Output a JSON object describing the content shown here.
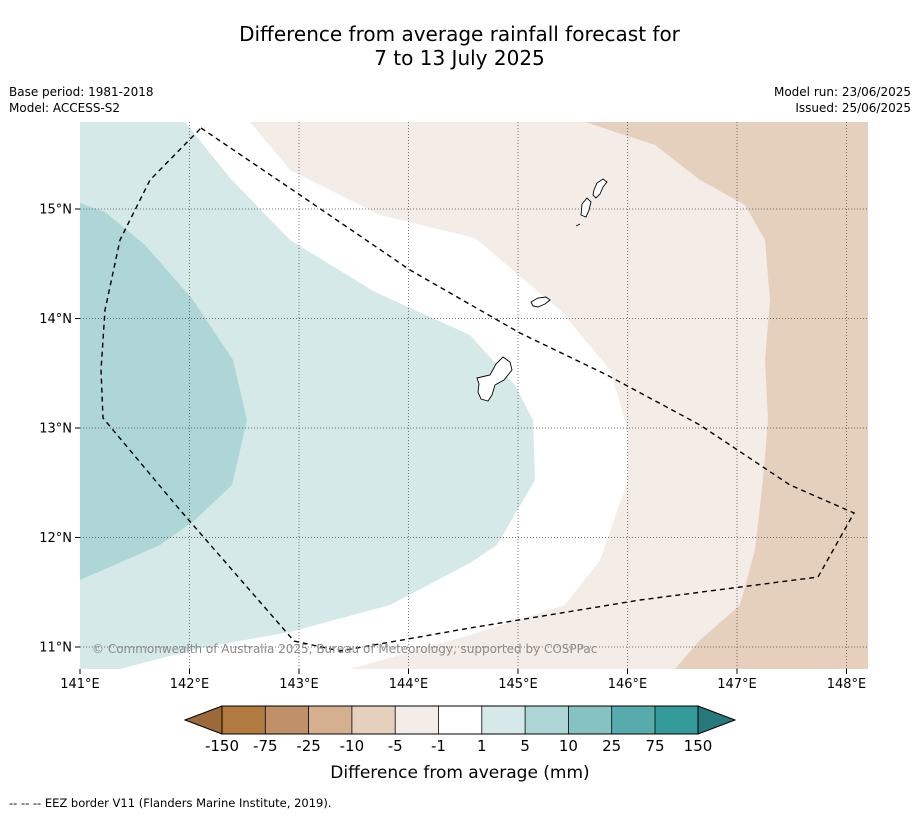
{
  "title_line1": "Difference from average rainfall forecast for",
  "title_line2": "7 to 13 July 2025",
  "meta_left": [
    "Base period: 1981-2018",
    "Model: ACCESS-S2"
  ],
  "meta_right": [
    "Model run: 23/06/2025",
    "Issued: 25/06/2025"
  ],
  "copyright": "© Commonwealth of Australia 2025, Bureau of Meteorology, supported by COSPPac",
  "lon_labels": [
    "141°E",
    "142°E",
    "143°E",
    "144°E",
    "145°E",
    "146°E",
    "147°E",
    "148°E"
  ],
  "lat_labels": [
    "15°N",
    "14°N",
    "13°N",
    "12°N",
    "11°N"
  ],
  "colorbar": {
    "title": "Difference from average (mm)",
    "tick_labels": [
      "-150",
      "-75",
      "-25",
      "-10",
      "-5",
      "-1",
      "1",
      "5",
      "10",
      "25",
      "75",
      "150"
    ],
    "colors": [
      "#9c6a38",
      "#b07a40",
      "#c09068",
      "#d4b090",
      "#e5d0be",
      "#f4ece6",
      "#ffffff",
      "#d4e9e8",
      "#aed6d6",
      "#86c2c2",
      "#58abab",
      "#349a9a",
      "#26787a"
    ]
  },
  "legend_note": "--  --  -- EEZ border V11 (Flanders Marine Institute, 2019)."
}
